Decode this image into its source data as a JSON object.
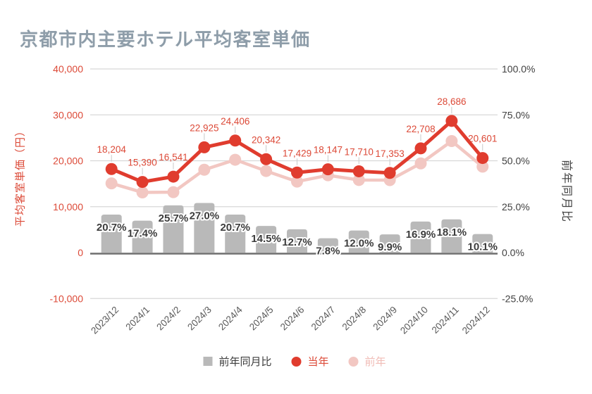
{
  "title": "京都市内主要ホテル平均客室単価",
  "chart_data": {
    "type": "combo-bar-line",
    "categories": [
      "2023/12",
      "2024/1",
      "2024/2",
      "2024/3",
      "2024/4",
      "2024/5",
      "2024/6",
      "2024/7",
      "2024/8",
      "2024/9",
      "2024/10",
      "2024/11",
      "2024/12"
    ],
    "series": [
      {
        "name": "前年同月比",
        "type": "bar",
        "axis": "right",
        "unit": "%",
        "values": [
          20.7,
          17.4,
          25.7,
          27.0,
          20.7,
          14.5,
          12.7,
          7.8,
          12.0,
          9.9,
          16.9,
          18.1,
          10.1
        ],
        "labels": [
          "20.7%",
          "17.4%",
          "25.7%",
          "27.0%",
          "20.7%",
          "14.5%",
          "12.7%",
          "7.8%",
          "12.0%",
          "9.9%",
          "16.9%",
          "18.1%",
          "10.1%"
        ],
        "labels_shown": true
      },
      {
        "name": "当年",
        "type": "line",
        "axis": "left",
        "unit": "円",
        "values": [
          18204,
          15390,
          16541,
          22925,
          24406,
          20342,
          17429,
          18147,
          17710,
          17353,
          22708,
          28686,
          20601
        ],
        "labels": [
          "18,204",
          "15,390",
          "16,541",
          "22,925",
          "24,406",
          "20,342",
          "17,429",
          "18,147",
          "17,710",
          "17,353",
          "22,708",
          "28,686",
          "20,601"
        ],
        "labels_shown": true
      },
      {
        "name": "前年",
        "type": "line",
        "axis": "left",
        "unit": "円",
        "values": [
          15082,
          13109,
          13159,
          18051,
          20220,
          17767,
          15465,
          16834,
          15813,
          15790,
          19425,
          24290,
          18711
        ],
        "labels_shown": false,
        "note": "values estimated from plotted positions (no data labels shown)"
      }
    ],
    "left_axis": {
      "title": "平均客室単価（円）",
      "ticks": [
        "40,000",
        "30,000",
        "20,000",
        "10,000",
        "0",
        "-10,000"
      ],
      "tick_values": [
        40000,
        30000,
        20000,
        10000,
        0,
        -10000
      ],
      "range": [
        -10000,
        40000
      ],
      "grid": true
    },
    "right_axis": {
      "title": "前年同月比",
      "ticks": [
        "100.0%",
        "75.0%",
        "50.0%",
        "25.0%",
        "0.0%",
        "-25.0%"
      ],
      "tick_values": [
        100,
        75,
        50,
        25,
        0,
        -25
      ],
      "range": [
        -25,
        100
      ]
    },
    "legend": [
      {
        "label": "前年同月比",
        "shape": "square"
      },
      {
        "label": "当年",
        "shape": "circle"
      },
      {
        "label": "前年",
        "shape": "circle"
      }
    ],
    "legend_position": "bottom"
  },
  "colors": {
    "title_text": "#8E9DA9",
    "red": "#E03C2E",
    "red_text": "#DC4937",
    "pink": "#F2C7C2",
    "pink_text": "#F0BCB6",
    "bar": "#B9B9B9",
    "pct_text": "#3C3C3C",
    "dark_text": "#404040",
    "xlabel_text": "#595959",
    "grid": "#D8D8D8",
    "axis_line": "#6E6E6E",
    "leader": "#C9C9C9",
    "background": "#FFFFFF"
  }
}
